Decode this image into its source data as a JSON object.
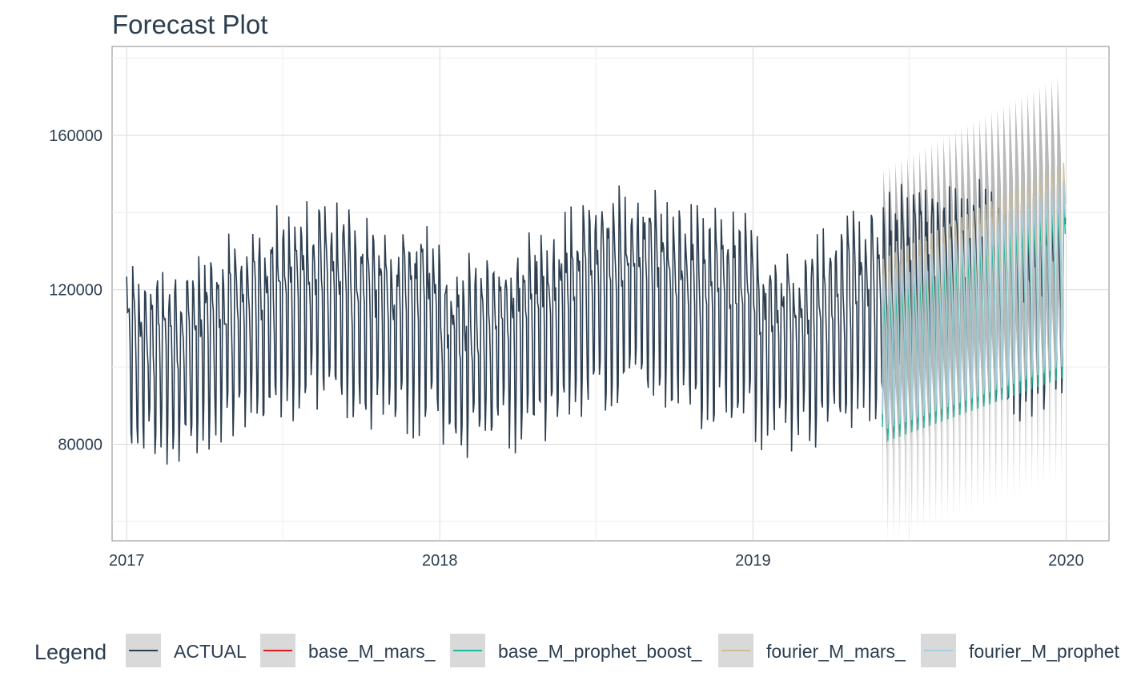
{
  "chart_data": {
    "type": "line",
    "title": "Forecast Plot",
    "xlabel": "",
    "ylabel": "",
    "x_ticks": [
      "2017",
      "2018",
      "2019",
      "2020"
    ],
    "y_ticks": [
      80000,
      120000,
      160000
    ],
    "x_range": [
      "2016-12-15",
      "2020-02-20"
    ],
    "y_range": [
      55000,
      183000
    ],
    "grid": true,
    "legend_position": "bottom",
    "legend_title": "Legend",
    "actual_start": "2017-01-01",
    "actual_end": "2019-12-31",
    "forecast_start": "2019-06-01",
    "forecast_end": "2019-12-31",
    "series": [
      {
        "name": "ACTUAL",
        "color": "#2c3e50"
      },
      {
        "name": "base_M_mars_",
        "color": "#e31a1c"
      },
      {
        "name": "base_M_prophet_boost_",
        "color": "#18bc9c"
      },
      {
        "name": "fourier_M_mars_",
        "color": "#ccbe93"
      },
      {
        "name": "fourier_M_prophet",
        "color": "#a6cee3"
      }
    ],
    "band_color": "#7f7f7f"
  }
}
